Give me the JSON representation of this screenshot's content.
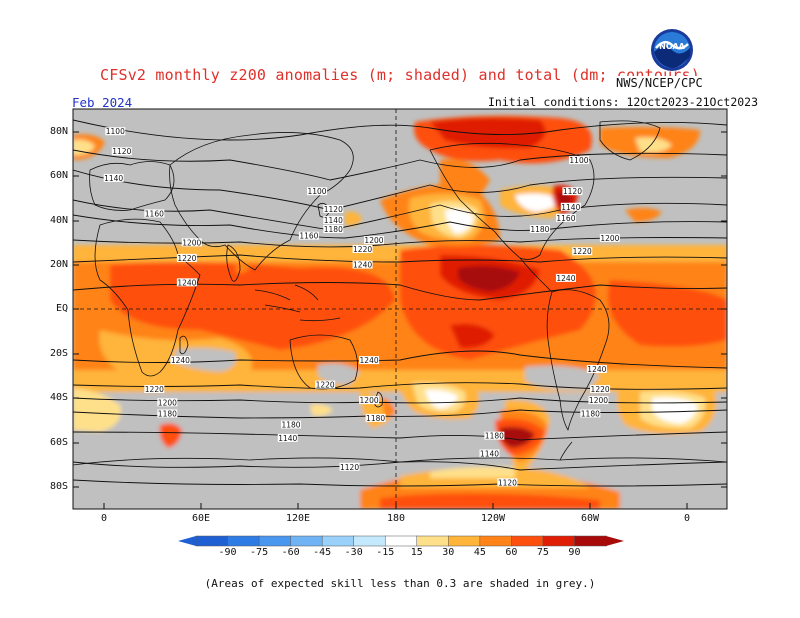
{
  "header": {
    "title": "CFSv2 monthly z200 anomalies (m; shaded) and total (dm; contours)",
    "month": "Feb 2024",
    "initial_conditions": "Initial conditions: 12Oct2023-21Oct2023",
    "agency": "NWS/NCEP/CPC",
    "logo_text": "NOAA"
  },
  "axes": {
    "latitude_labels": [
      "80N",
      "60N",
      "40N",
      "20N",
      "EQ",
      "20S",
      "40S",
      "60S",
      "80S"
    ],
    "longitude_labels": [
      "0",
      "60E",
      "120E",
      "180",
      "120W",
      "60W",
      "0"
    ]
  },
  "contour_labels": [
    {
      "text": "1100",
      "lon": 6,
      "lat": 80
    },
    {
      "text": "1120",
      "lon": 10,
      "lat": 71
    },
    {
      "text": "1140",
      "lon": 5,
      "lat": 59
    },
    {
      "text": "1160",
      "lon": 30,
      "lat": 43
    },
    {
      "text": "1200",
      "lon": 53,
      "lat": 30
    },
    {
      "text": "1220",
      "lon": 50,
      "lat": 23
    },
    {
      "text": "1240",
      "lon": 50,
      "lat": 12
    },
    {
      "text": "1100",
      "lon": 130,
      "lat": 53
    },
    {
      "text": "1120",
      "lon": 140,
      "lat": 45
    },
    {
      "text": "1140",
      "lon": 140,
      "lat": 40
    },
    {
      "text": "1160",
      "lon": 125,
      "lat": 33
    },
    {
      "text": "1180",
      "lon": 140,
      "lat": 36
    },
    {
      "text": "1200",
      "lon": 165,
      "lat": 31
    },
    {
      "text": "1220",
      "lon": 158,
      "lat": 27
    },
    {
      "text": "1240",
      "lon": 158,
      "lat": 20
    },
    {
      "text": "1100",
      "lon": -69,
      "lat": 67
    },
    {
      "text": "1120",
      "lon": -73,
      "lat": 53
    },
    {
      "text": "1140",
      "lon": -74,
      "lat": 46
    },
    {
      "text": "1160",
      "lon": -77,
      "lat": 41
    },
    {
      "text": "1180",
      "lon": -93,
      "lat": 36
    },
    {
      "text": "1200",
      "lon": -50,
      "lat": 32
    },
    {
      "text": "1220",
      "lon": -67,
      "lat": 26
    },
    {
      "text": "1240",
      "lon": -77,
      "lat": 14
    },
    {
      "text": "1240",
      "lon": 46,
      "lat": -23
    },
    {
      "text": "1220",
      "lon": 30,
      "lat": -36
    },
    {
      "text": "1200",
      "lon": 38,
      "lat": -42
    },
    {
      "text": "1180",
      "lon": 38,
      "lat": -47
    },
    {
      "text": "1240",
      "lon": 162,
      "lat": -23
    },
    {
      "text": "1220",
      "lon": 135,
      "lat": -34
    },
    {
      "text": "1200",
      "lon": 162,
      "lat": -41
    },
    {
      "text": "1180",
      "lon": 166,
      "lat": -49
    },
    {
      "text": "1180",
      "lon": 114,
      "lat": -52
    },
    {
      "text": "1140",
      "lon": 112,
      "lat": -58
    },
    {
      "text": "1240",
      "lon": -58,
      "lat": -27
    },
    {
      "text": "1220",
      "lon": -56,
      "lat": -36
    },
    {
      "text": "1200",
      "lon": -57,
      "lat": -41
    },
    {
      "text": "1180",
      "lon": -62,
      "lat": -47
    },
    {
      "text": "1180",
      "lon": -121,
      "lat": -57
    },
    {
      "text": "1140",
      "lon": -124,
      "lat": -65
    },
    {
      "text": "1120",
      "lon": 150,
      "lat": -71
    },
    {
      "text": "1120",
      "lon": -113,
      "lat": -78
    }
  ],
  "colorbar": {
    "tick_labels": [
      "-90",
      "-75",
      "-60",
      "-45",
      "-30",
      "-15",
      "15",
      "30",
      "45",
      "60",
      "75",
      "90"
    ],
    "colors": [
      "#1e5fd4",
      "#2f7be6",
      "#4a97ef",
      "#6fb3f5",
      "#9ad1fa",
      "#c4e8fc",
      "#ffffff",
      "#ffe08a",
      "#ffb43a",
      "#ff8318",
      "#ff4f0f",
      "#e01e05",
      "#a80a0a"
    ]
  },
  "footer_note": "(Areas of expected skill less than 0.3 are shaded in grey.)",
  "colors": {
    "grey_low_skill": "#c0c0c0",
    "title_red": "#e0302a",
    "month_blue": "#2233cc"
  }
}
